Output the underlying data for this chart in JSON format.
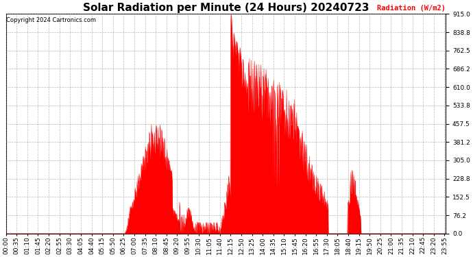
{
  "title": "Solar Radiation per Minute (24 Hours) 20240723",
  "ylabel": "Radiation (W/m2)",
  "ylabel_color": "#ff0000",
  "copyright_text": "Copyright 2024 Cartronics.com",
  "fill_color": "#ff0000",
  "line_color": "#ff0000",
  "background_color": "#ffffff",
  "grid_color": "#888888",
  "ylim": [
    0,
    915.0
  ],
  "yticks": [
    0.0,
    76.2,
    152.5,
    228.8,
    305.0,
    381.2,
    457.5,
    533.8,
    610.0,
    686.2,
    762.5,
    838.8,
    915.0
  ],
  "title_fontsize": 11,
  "axis_fontsize": 6.5,
  "figsize": [
    6.9,
    3.75
  ],
  "dpi": 100
}
